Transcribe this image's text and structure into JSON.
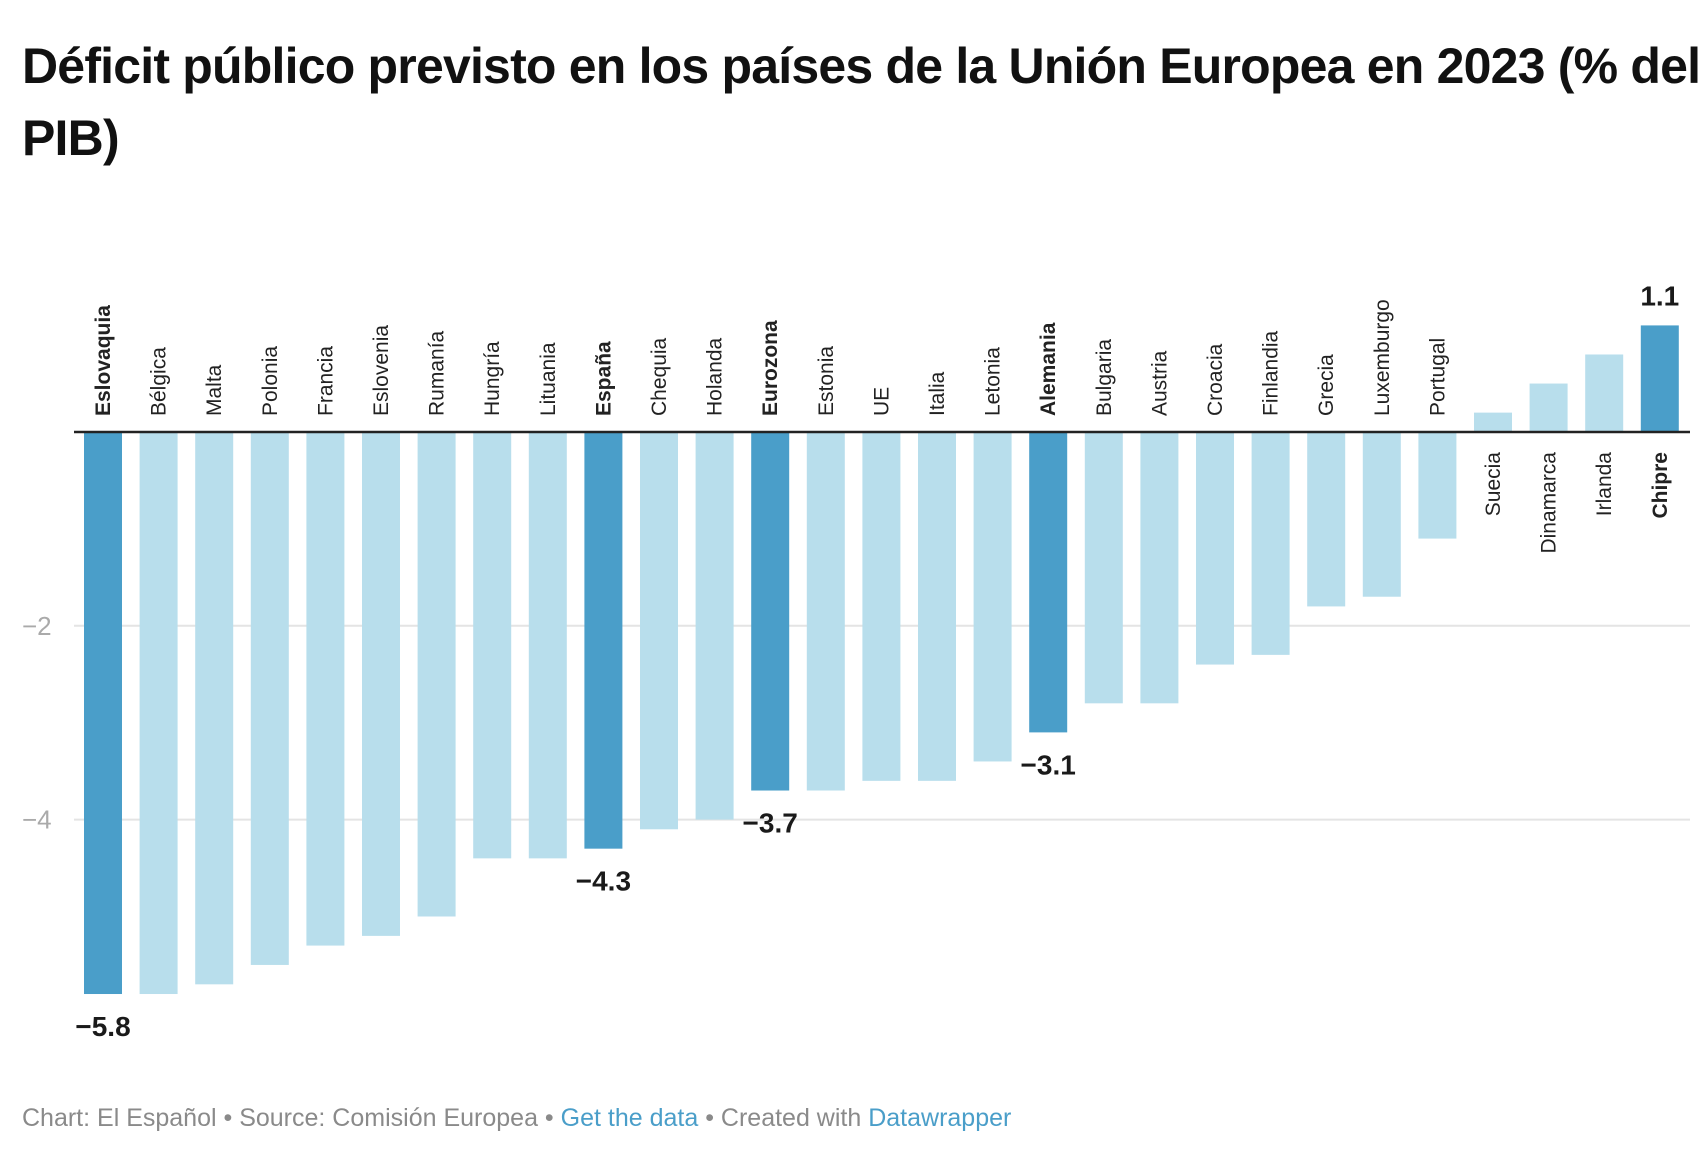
{
  "chart_data": {
    "type": "bar",
    "title": "Déficit público previsto en los países de la Unión Europea en 2023 (% del PIB)",
    "categories": [
      "Eslovaquia",
      "Bélgica",
      "Malta",
      "Polonia",
      "Francia",
      "Eslovenia",
      "Rumanía",
      "Hungría",
      "Lituania",
      "España",
      "Chequia",
      "Holanda",
      "Eurozona",
      "Estonia",
      "UE",
      "Italia",
      "Letonia",
      "Alemania",
      "Bulgaria",
      "Austria",
      "Croacia",
      "Finlandia",
      "Grecia",
      "Luxemburgo",
      "Portugal",
      "Suecia",
      "Dinamarca",
      "Irlanda",
      "Chipre"
    ],
    "values": [
      -5.8,
      -5.8,
      -5.7,
      -5.5,
      -5.3,
      -5.2,
      -5.0,
      -4.4,
      -4.4,
      -4.3,
      -4.1,
      -4.0,
      -3.7,
      -3.7,
      -3.6,
      -3.6,
      -3.4,
      -3.1,
      -2.8,
      -2.8,
      -2.4,
      -2.3,
      -1.8,
      -1.7,
      -1.1,
      0.2,
      0.5,
      0.8,
      1.1
    ],
    "highlighted": [
      "Eslovaquia",
      "España",
      "Eurozona",
      "Alemania",
      "Chipre"
    ],
    "data_labels": [
      {
        "category": "Eslovaquia",
        "text": "−5.8"
      },
      {
        "category": "España",
        "text": "−4.3"
      },
      {
        "category": "Eurozona",
        "text": "−3.7"
      },
      {
        "category": "Alemania",
        "text": "−3.1"
      },
      {
        "category": "Chipre",
        "text": "1.1"
      }
    ],
    "ylim": [
      -5.8,
      1.1
    ],
    "y_ticks": [
      {
        "value": -2,
        "label": "−2"
      },
      {
        "value": -4,
        "label": "−4"
      }
    ],
    "grid": true,
    "colors": {
      "highlight": "#4a9ec9",
      "default": "#b8deec",
      "grid": "#e4e4e4",
      "baseline": "#222222"
    }
  },
  "footer": {
    "chart_by": "Chart: El Español",
    "separator": " • ",
    "source": "Source: Comisión Europea",
    "get_data": "Get the data",
    "created_with": "Created with ",
    "tool": "Datawrapper"
  }
}
